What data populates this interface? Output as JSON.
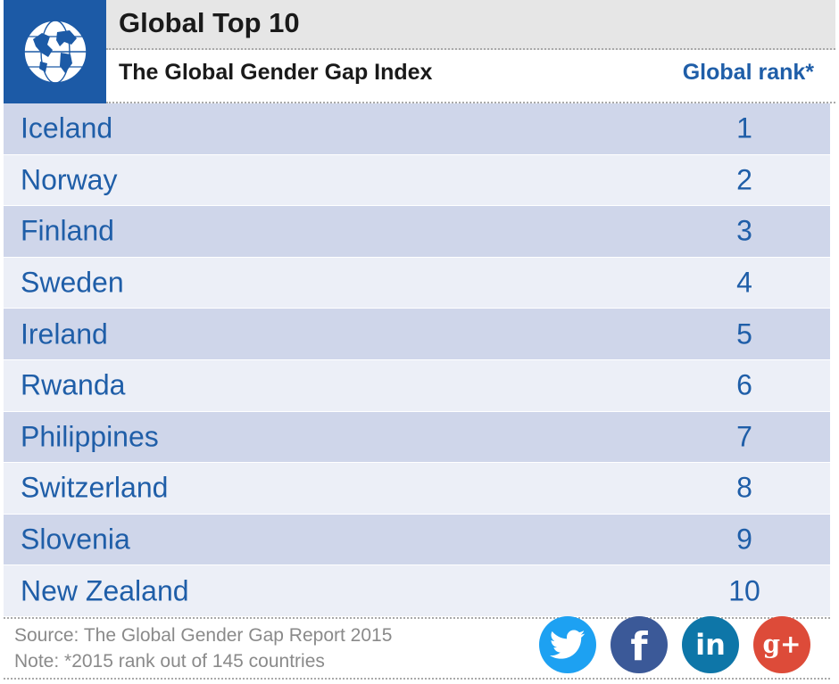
{
  "header": {
    "title": "Global Top 10",
    "subtitle": "The Global Gender Gap Index",
    "rank_column": "Global rank*",
    "globe_icon": "globe-icon"
  },
  "chart_data": {
    "type": "table",
    "title": "Global Top 10",
    "subtitle": "The Global Gender Gap Index",
    "columns": [
      "",
      "Global rank*"
    ],
    "rows": [
      {
        "country": "Iceland",
        "rank": "1"
      },
      {
        "country": "Norway",
        "rank": "2"
      },
      {
        "country": "Finland",
        "rank": "3"
      },
      {
        "country": "Sweden",
        "rank": "4"
      },
      {
        "country": "Ireland",
        "rank": "5"
      },
      {
        "country": "Rwanda",
        "rank": "6"
      },
      {
        "country": "Philippines",
        "rank": "7"
      },
      {
        "country": "Switzerland",
        "rank": "8"
      },
      {
        "country": "Slovenia",
        "rank": "9"
      },
      {
        "country": "New Zealand",
        "rank": "10"
      }
    ]
  },
  "footer": {
    "source": "Source: The Global Gender Gap Report 2015",
    "note": "Note: *2015 rank out of 145 countries"
  },
  "social": {
    "twitter": {
      "icon": "twitter-icon",
      "color": "#1da1f2"
    },
    "facebook": {
      "icon": "facebook-icon",
      "glyph": "f",
      "color": "#3b5998"
    },
    "linkedin": {
      "icon": "linkedin-icon",
      "glyph": "in",
      "color": "#0e76a8"
    },
    "gplus": {
      "icon": "google-plus-icon",
      "glyph": "g+",
      "color": "#dd4b39"
    }
  },
  "colors": {
    "brand_blue": "#1c5aa6",
    "text_blue": "#1f5ea8",
    "row_dark": "#cfd6ea",
    "row_light": "#eceff7"
  }
}
